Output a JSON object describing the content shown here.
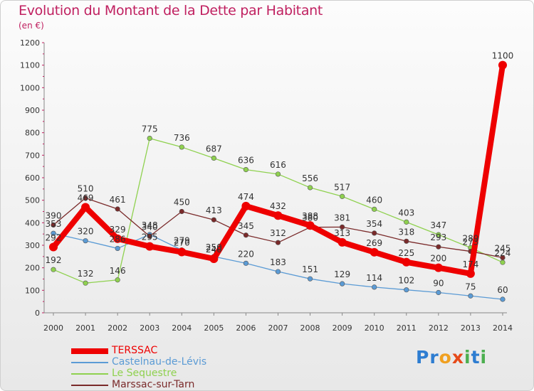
{
  "title": "Evolution du Montant de la Dette par Habitant",
  "subtitle": "(en €)",
  "logo": "Proxiti",
  "chart_data": {
    "type": "line",
    "x": [
      "2000",
      "2001",
      "2002",
      "2003",
      "2004",
      "2005",
      "2006",
      "2007",
      "2008",
      "2009",
      "2010",
      "2011",
      "2012",
      "2013",
      "2014"
    ],
    "ylim": [
      0,
      1200
    ],
    "yticks": [
      "0",
      "100",
      "200",
      "300",
      "400",
      "500",
      "600",
      "700",
      "800",
      "900",
      "1000",
      "1100",
      "1200"
    ],
    "grid": false,
    "legend_position": "bottom-left",
    "series": [
      {
        "name": "TERSSAC",
        "color": "#ee0000",
        "values": [
          292,
          469,
          329,
          295,
          270,
          240,
          474,
          432,
          388,
          313,
          269,
          225,
          200,
          174,
          1100
        ],
        "labels": [
          "292",
          "469",
          "329",
          "295",
          "270",
          "240",
          "474",
          "432",
          "388",
          "313",
          "269",
          "225",
          "200",
          "174",
          "1100"
        ]
      },
      {
        "name": "Castelnau-de-Lévis",
        "color": "#5b9bd5",
        "values": [
          353,
          320,
          286,
          348,
          279,
          250,
          220,
          183,
          151,
          129,
          114,
          102,
          90,
          75,
          60
        ],
        "labels": [
          "353",
          "320",
          "286",
          "348",
          "279",
          "250",
          "220",
          "183",
          "151",
          "129",
          "114",
          "102",
          "90",
          "75",
          "60"
        ]
      },
      {
        "name": "Le Sequestre",
        "color": "#8fd14f",
        "values": [
          192,
          132,
          146,
          775,
          736,
          687,
          636,
          616,
          556,
          517,
          460,
          403,
          347,
          289,
          224
        ],
        "labels": [
          "192",
          "132",
          "146",
          "775",
          "736",
          "687",
          "636",
          "616",
          "556",
          "517",
          "460",
          "403",
          "347",
          "289",
          "224"
        ]
      },
      {
        "name": "Marssac-sur-Tarn",
        "color": "#7a2a2a",
        "values": [
          390,
          510,
          461,
          340,
          450,
          413,
          345,
          312,
          380,
          381,
          354,
          318,
          293,
          273,
          245
        ],
        "labels": [
          "390",
          "510",
          "461",
          "340",
          "450",
          "413",
          "345",
          "312",
          "380",
          "381",
          "354",
          "318",
          "293",
          "273",
          "245"
        ]
      }
    ]
  }
}
